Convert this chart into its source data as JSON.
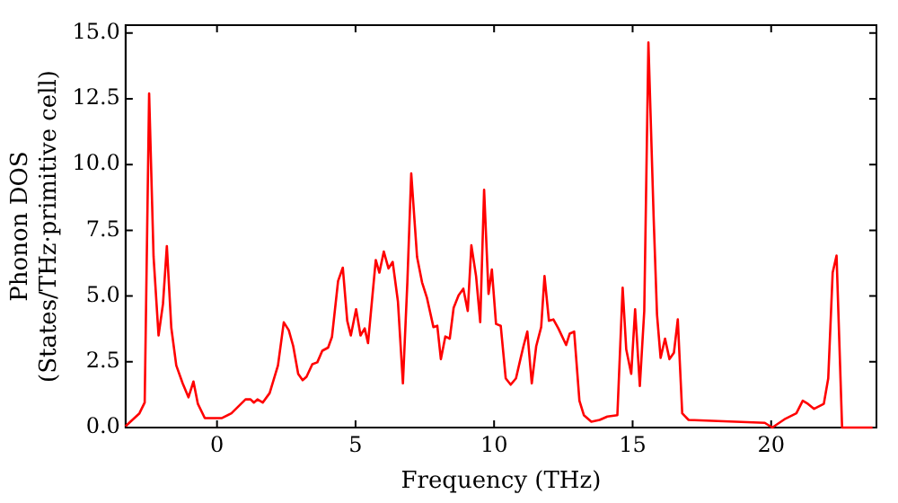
{
  "chart_data": {
    "type": "line",
    "xlabel": "Frequency (THz)",
    "ylabel": "Phonon DOS\n(States/THz·primitive cell)",
    "x": [
      -3.3,
      -2.8,
      -2.61,
      -2.45,
      -2.29,
      -2.11,
      -1.95,
      -1.81,
      -1.65,
      -1.47,
      -1.24,
      -1.03,
      -0.85,
      -0.69,
      -0.44,
      0.18,
      0.52,
      1.03,
      1.21,
      1.33,
      1.46,
      1.65,
      1.9,
      2.2,
      2.41,
      2.59,
      2.75,
      2.93,
      3.09,
      3.23,
      3.44,
      3.62,
      3.8,
      4.01,
      4.15,
      4.37,
      4.54,
      4.7,
      4.83,
      5.02,
      5.18,
      5.33,
      5.45,
      5.73,
      5.86,
      6.02,
      6.19,
      6.34,
      6.53,
      6.71,
      6.87,
      7.01,
      7.22,
      7.4,
      7.58,
      7.81,
      7.95,
      8.08,
      8.24,
      8.4,
      8.54,
      8.72,
      8.89,
      9.05,
      9.18,
      9.35,
      9.5,
      9.64,
      9.8,
      9.92,
      10.07,
      10.24,
      10.42,
      10.6,
      10.79,
      10.95,
      11.06,
      11.2,
      11.36,
      11.52,
      11.7,
      11.82,
      11.98,
      12.14,
      12.32,
      12.6,
      12.73,
      12.89,
      13.08,
      13.24,
      13.51,
      13.81,
      14.09,
      14.45,
      14.64,
      14.77,
      14.95,
      15.09,
      15.26,
      15.42,
      15.57,
      15.76,
      15.88,
      16.01,
      16.17,
      16.33,
      16.49,
      16.63,
      16.79,
      17.02,
      19.77,
      20.04,
      20.52,
      20.91,
      21.14,
      21.33,
      21.55,
      21.9,
      22.06,
      22.22,
      22.36,
      22.56,
      23.66
    ],
    "series": [
      {
        "color": "#ff0000",
        "values": [
          0.05,
          0.54,
          0.95,
          12.7,
          6.5,
          3.5,
          4.7,
          6.9,
          3.8,
          2.36,
          1.68,
          1.15,
          1.75,
          0.9,
          0.36,
          0.36,
          0.54,
          1.07,
          1.07,
          0.95,
          1.07,
          0.95,
          1.31,
          2.36,
          4.0,
          3.7,
          3.1,
          2.04,
          1.8,
          1.93,
          2.41,
          2.48,
          2.92,
          3.04,
          3.45,
          5.57,
          6.08,
          4.06,
          3.5,
          4.5,
          3.5,
          3.77,
          3.21,
          6.37,
          5.89,
          6.69,
          6.05,
          6.3,
          4.79,
          1.68,
          5.52,
          9.66,
          6.49,
          5.52,
          4.92,
          3.82,
          3.87,
          2.6,
          3.46,
          3.38,
          4.55,
          5.03,
          5.28,
          4.43,
          6.93,
          5.76,
          4.01,
          9.04,
          5.08,
          6.01,
          3.94,
          3.87,
          1.87,
          1.63,
          1.87,
          2.6,
          3.09,
          3.65,
          1.68,
          3.09,
          3.82,
          5.76,
          4.06,
          4.11,
          3.77,
          3.14,
          3.57,
          3.65,
          1.02,
          0.47,
          0.22,
          0.29,
          0.42,
          0.47,
          5.32,
          2.97,
          2.04,
          4.5,
          1.58,
          4.43,
          14.64,
          7.95,
          4.3,
          2.65,
          3.38,
          2.6,
          2.84,
          4.11,
          0.54,
          0.29,
          0.18,
          0,
          0.34,
          0.54,
          1.02,
          0.9,
          0.71,
          0.9,
          1.87,
          5.89,
          6.54,
          0,
          0
        ]
      }
    ],
    "xlim": [
      -3.3,
      23.8
    ],
    "xticks": [
      0,
      5,
      10,
      15,
      20
    ],
    "ylim": [
      0,
      15.3
    ],
    "yticks": [
      {
        "value": 0,
        "label": "0.0"
      },
      {
        "value": 2.5,
        "label": "2.5"
      },
      {
        "value": 5,
        "label": "5.0"
      },
      {
        "value": 7.5,
        "label": "7.5"
      },
      {
        "value": 10,
        "label": "10.0"
      },
      {
        "value": 12.5,
        "label": "12.5"
      },
      {
        "value": 15,
        "label": "15.0"
      }
    ],
    "grid": false,
    "legend": false,
    "marker": "none",
    "line_style": "solid"
  }
}
